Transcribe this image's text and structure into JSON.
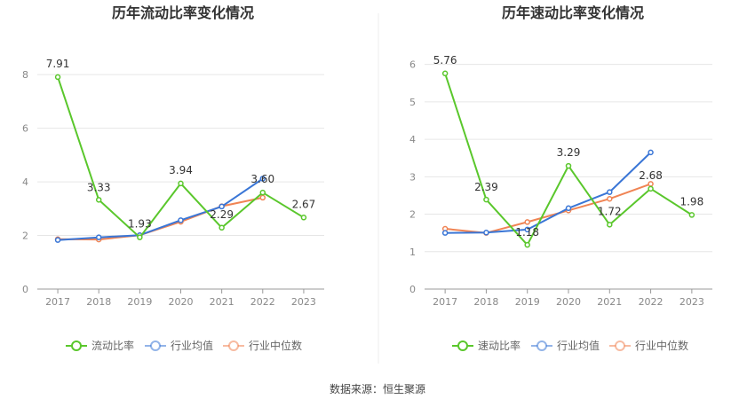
{
  "chart_data": [
    {
      "type": "line",
      "title": "历年流动比率变化情况",
      "categories": [
        "2017",
        "2018",
        "2019",
        "2020",
        "2021",
        "2022",
        "2023"
      ],
      "y_ticks": [
        0,
        2,
        4,
        6,
        8
      ],
      "ylim": [
        0,
        8.8
      ],
      "series": [
        {
          "name": "流动比率",
          "color": "#5ac72c",
          "values": [
            7.91,
            3.33,
            1.93,
            3.94,
            2.29,
            3.6,
            2.67
          ],
          "labels": [
            "7.91",
            "3.33",
            "1.93",
            "3.94",
            "2.29",
            "3.60",
            "2.67"
          ]
        },
        {
          "name": "行业均值",
          "color": "#3a76d6",
          "values": [
            1.83,
            1.93,
            2.01,
            2.57,
            3.08,
            4.12,
            null
          ]
        },
        {
          "name": "行业中位数",
          "color": "#f08454",
          "values": [
            1.86,
            1.85,
            2.01,
            2.51,
            3.09,
            3.41,
            null
          ]
        }
      ]
    },
    {
      "type": "line",
      "title": "历年速动比率变化情况",
      "categories": [
        "2017",
        "2018",
        "2019",
        "2020",
        "2021",
        "2022",
        "2023"
      ],
      "y_ticks": [
        0,
        1,
        2,
        3,
        4,
        5,
        6
      ],
      "ylim": [
        0,
        6.3
      ],
      "series": [
        {
          "name": "速动比率",
          "color": "#5ac72c",
          "values": [
            5.76,
            2.39,
            1.18,
            3.29,
            1.72,
            2.68,
            1.98
          ],
          "labels": [
            "5.76",
            "2.39",
            "1.18",
            "3.29",
            "1.72",
            "2.68",
            "1.98"
          ]
        },
        {
          "name": "行业均值",
          "color": "#3a76d6",
          "values": [
            1.5,
            1.51,
            1.59,
            2.16,
            2.59,
            3.65,
            null
          ]
        },
        {
          "name": "行业中位数",
          "color": "#f08454",
          "values": [
            1.61,
            1.5,
            1.79,
            2.1,
            2.41,
            2.81,
            null
          ]
        }
      ]
    }
  ],
  "source_text": "数据来源：恒生聚源"
}
